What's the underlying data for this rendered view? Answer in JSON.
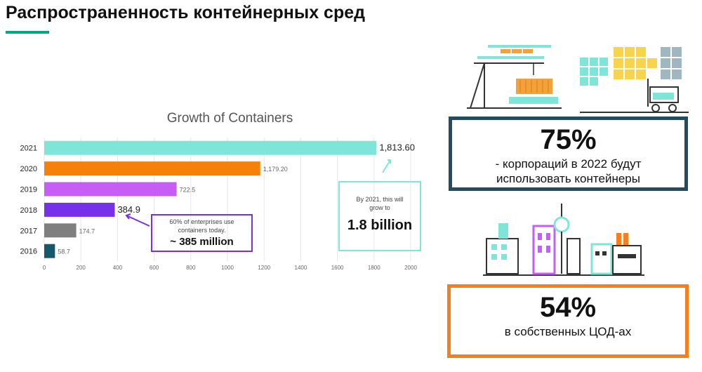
{
  "slide": {
    "title": "Распространенность контейнерных сред"
  },
  "chart_data": {
    "type": "bar",
    "orientation": "horizontal",
    "title": "Growth of Containers",
    "categories": [
      "2021",
      "2020",
      "2019",
      "2018",
      "2017",
      "2016"
    ],
    "values": [
      1813.6,
      1179.2,
      722.5,
      384.9,
      174.7,
      58.7
    ],
    "value_labels": [
      "1,813.60",
      "1,179.20",
      "722.5",
      "384.9",
      "174.7",
      "58.7"
    ],
    "colors": [
      "#7fe5d9",
      "#f5800a",
      "#c65ef5",
      "#7630ea",
      "#7f7f7f",
      "#17596b"
    ],
    "xlim": [
      0,
      2000
    ],
    "xticks": [
      0,
      200,
      400,
      600,
      800,
      1000,
      1200,
      1400,
      1600,
      1800,
      2000
    ],
    "xlabel": "",
    "ylabel": "",
    "grid": "vertical",
    "legend": "none",
    "annotations": [
      {
        "target": "2018",
        "lines": [
          "60% of enterprises use",
          "containers today."
        ],
        "highlight": "~ 385 million",
        "color": "#7630ea"
      },
      {
        "target": "2021",
        "lines": [
          "By 2021, this will",
          "grow to"
        ],
        "highlight": "1.8 billion",
        "color": "#7fe5d9"
      }
    ]
  },
  "stats": [
    {
      "value": "75%",
      "desc_lines": [
        "- корпораций в 2022 будут",
        "использовать контейнеры"
      ],
      "border_color": "#234d5c"
    },
    {
      "value": "54%",
      "desc_lines": [
        "в собственных ЦОД-ах"
      ],
      "border_color": "#f57f1f"
    }
  ],
  "icons": [
    "port-crane-icon",
    "warehouse-forklift-icon",
    "city-buildings-icon"
  ]
}
